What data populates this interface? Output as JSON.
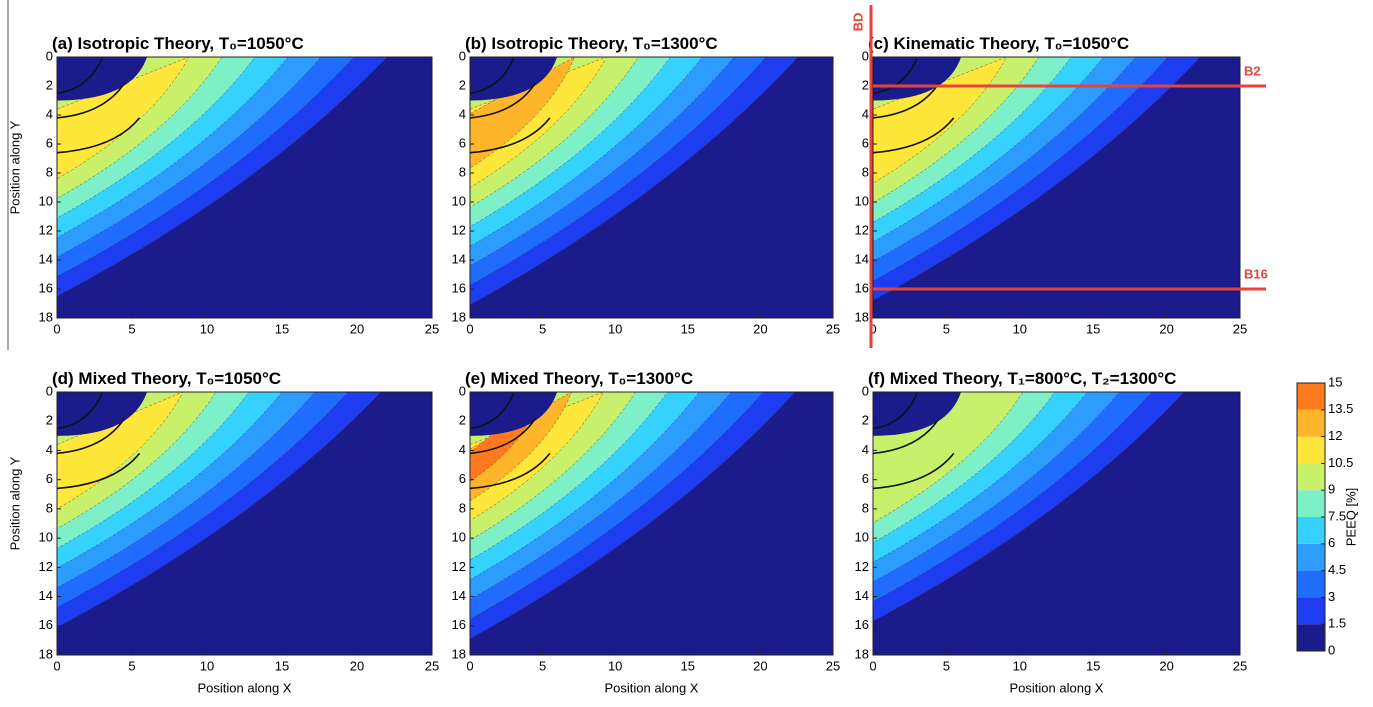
{
  "chart_data": [
    {
      "type": "contour",
      "title": "(a) Isotropic Theory, T₀=1050°C",
      "ylabel": "Position along Y",
      "xlim": [
        0,
        25
      ],
      "ylim": [
        0,
        18
      ],
      "y_inverted": true,
      "xticks": [
        0,
        5,
        10,
        15,
        20,
        25
      ],
      "yticks": [
        0,
        2,
        4,
        6,
        8,
        10,
        12,
        14,
        16,
        18
      ]
    },
    {
      "type": "contour",
      "title": "(b) Isotropic Theory, T₀=1300°C",
      "xlim": [
        0,
        25
      ],
      "ylim": [
        0,
        18
      ],
      "y_inverted": true,
      "xticks": [
        0,
        5,
        10,
        15,
        20,
        25
      ],
      "yticks": [
        0,
        2,
        4,
        6,
        8,
        10,
        12,
        14,
        16,
        18
      ]
    },
    {
      "type": "contour",
      "title": "(c) Kinematic Theory, T₀=1050°C",
      "xlim": [
        0,
        25
      ],
      "ylim": [
        0,
        18
      ],
      "y_inverted": true,
      "xticks": [
        0,
        5,
        10,
        15,
        20,
        25
      ],
      "yticks": [
        0,
        2,
        4,
        6,
        8,
        10,
        12,
        14,
        16,
        18
      ],
      "annotations": [
        {
          "text": "BD"
        },
        {
          "text": "B2",
          "y": 2
        },
        {
          "text": "B16",
          "y": 16
        }
      ],
      "annotation_color": "#e8433a"
    },
    {
      "type": "contour",
      "title": "(d) Mixed Theory, T₀=1050°C",
      "ylabel": "Position along Y",
      "xlabel": "Position along X",
      "xlim": [
        0,
        25
      ],
      "ylim": [
        0,
        18
      ],
      "y_inverted": true,
      "xticks": [
        0,
        5,
        10,
        15,
        20,
        25
      ],
      "yticks": [
        0,
        2,
        4,
        6,
        8,
        10,
        12,
        14,
        16,
        18
      ]
    },
    {
      "type": "contour",
      "title": "(e) Mixed Theory, T₀=1300°C",
      "xlabel": "Position along X",
      "xlim": [
        0,
        25
      ],
      "ylim": [
        0,
        18
      ],
      "y_inverted": true,
      "xticks": [
        0,
        5,
        10,
        15,
        20,
        25
      ],
      "yticks": [
        0,
        2,
        4,
        6,
        8,
        10,
        12,
        14,
        16,
        18
      ]
    },
    {
      "type": "contour",
      "title": "(f) Mixed Theory, T₁=800°C, T₂=1300°C",
      "xlabel": "Position along X",
      "xlim": [
        0,
        25
      ],
      "ylim": [
        0,
        18
      ],
      "y_inverted": true,
      "xticks": [
        0,
        5,
        10,
        15,
        20,
        25
      ],
      "yticks": [
        0,
        2,
        4,
        6,
        8,
        10,
        12,
        14,
        16,
        18
      ]
    }
  ],
  "colorbar": {
    "label": "PEEQ [%]",
    "levels": [
      0,
      1.5,
      3,
      4.5,
      6,
      7.5,
      9,
      10.5,
      12,
      13.5,
      15
    ],
    "colors": [
      "#1b1b8c",
      "#1e3cf0",
      "#1f6cff",
      "#2c9cff",
      "#35d2ff",
      "#7ef0c8",
      "#c8f06a",
      "#ffe63a",
      "#ffb52a",
      "#ff7a1e"
    ]
  }
}
